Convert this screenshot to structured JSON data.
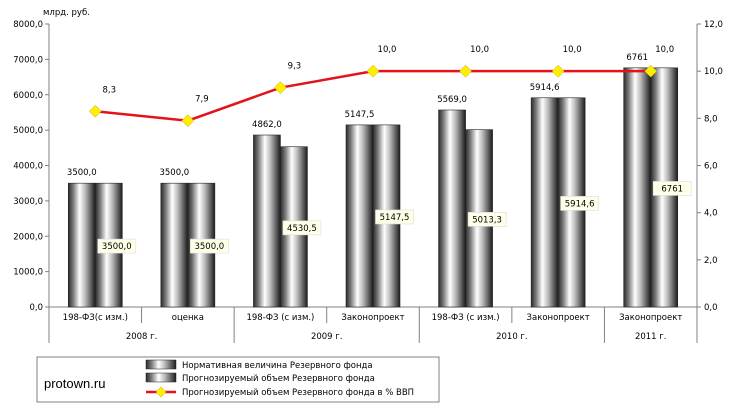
{
  "chart_data": {
    "type": "bar",
    "ylabel": "млрд. руб.",
    "ylim": [
      0,
      8000
    ],
    "yticks": [
      "0,0",
      "1000,0",
      "2000,0",
      "3000,0",
      "4000,0",
      "5000,0",
      "6000,0",
      "7000,0",
      "8000,0"
    ],
    "y2lim": [
      0,
      12
    ],
    "y2ticks": [
      "0,0",
      "2,0",
      "4,0",
      "6,0",
      "8,0",
      "10,0",
      "12,0"
    ],
    "categories": [
      "198-ФЗ(с изм.)",
      "оценка",
      "198-ФЗ (с изм.)",
      "Законопроект",
      "198-ФЗ (с изм.)",
      "Законопроект",
      "Законопроект"
    ],
    "groups": [
      {
        "label": "2008 г.",
        "span": 2
      },
      {
        "label": "2009 г.",
        "span": 2
      },
      {
        "label": "2010 г.",
        "span": 2
      },
      {
        "label": "2011 г.",
        "span": 1
      }
    ],
    "series": [
      {
        "name": "Нормативная величина Резервного фонда",
        "values": [
          3500.0,
          3500.0,
          4862.0,
          5147.5,
          5569.0,
          5914.6,
          6761
        ],
        "labels": [
          "3500,0",
          "3500,0",
          "4862,0",
          "5147,5",
          "5569,0",
          "5914,6",
          "6761"
        ]
      },
      {
        "name": "Прогнозируемый объем Резервного фонда",
        "values": [
          3500.0,
          3500.0,
          4530.5,
          5147.5,
          5013.3,
          5914.6,
          6761
        ],
        "labels": [
          "3500,0",
          "3500,0",
          "4530,5",
          "5147,5",
          "5013,3",
          "5914,6",
          "6761"
        ]
      },
      {
        "name": "Прогнозируемый объем Резервного фонда в % ВВП",
        "axis": "right",
        "color": "#e3121b",
        "values": [
          8.3,
          7.9,
          9.3,
          10.0,
          10.0,
          10.0,
          10.0
        ],
        "labels": [
          "8,3",
          "7,9",
          "9,3",
          "10,0",
          "10,0",
          "10,0",
          "10,0"
        ]
      }
    ],
    "legend_position": "bottom",
    "grid": false
  },
  "watermark": "protown.ru",
  "colors": {
    "line": "#e3121b",
    "marker": "#ffee00",
    "axis": "#808080"
  }
}
